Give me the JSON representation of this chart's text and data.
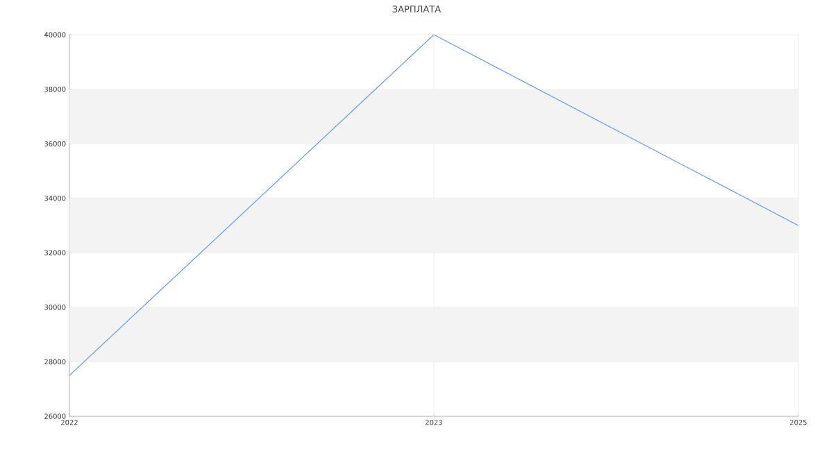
{
  "chart_data": {
    "type": "line",
    "title": "ЗАРПЛАТА",
    "categories": [
      "2022",
      "2023",
      "2025"
    ],
    "series": [
      {
        "color": "#6d9cf0",
        "values": [
          27500,
          40000,
          33000
        ]
      }
    ],
    "ylim": [
      26000,
      40000
    ],
    "yticks": [
      26000,
      28000,
      30000,
      32000,
      34000,
      36000,
      38000,
      40000
    ],
    "bands": [
      {
        "axis": "y",
        "from": 28000,
        "to": 30000,
        "color": "#f3f3f3"
      },
      {
        "axis": "y",
        "from": 32000,
        "to": 34000,
        "color": "#f3f3f3"
      },
      {
        "axis": "y",
        "from": 36000,
        "to": 38000,
        "color": "#f3f3f3"
      }
    ],
    "grid": true,
    "marker": "none",
    "line_style": "solid"
  }
}
